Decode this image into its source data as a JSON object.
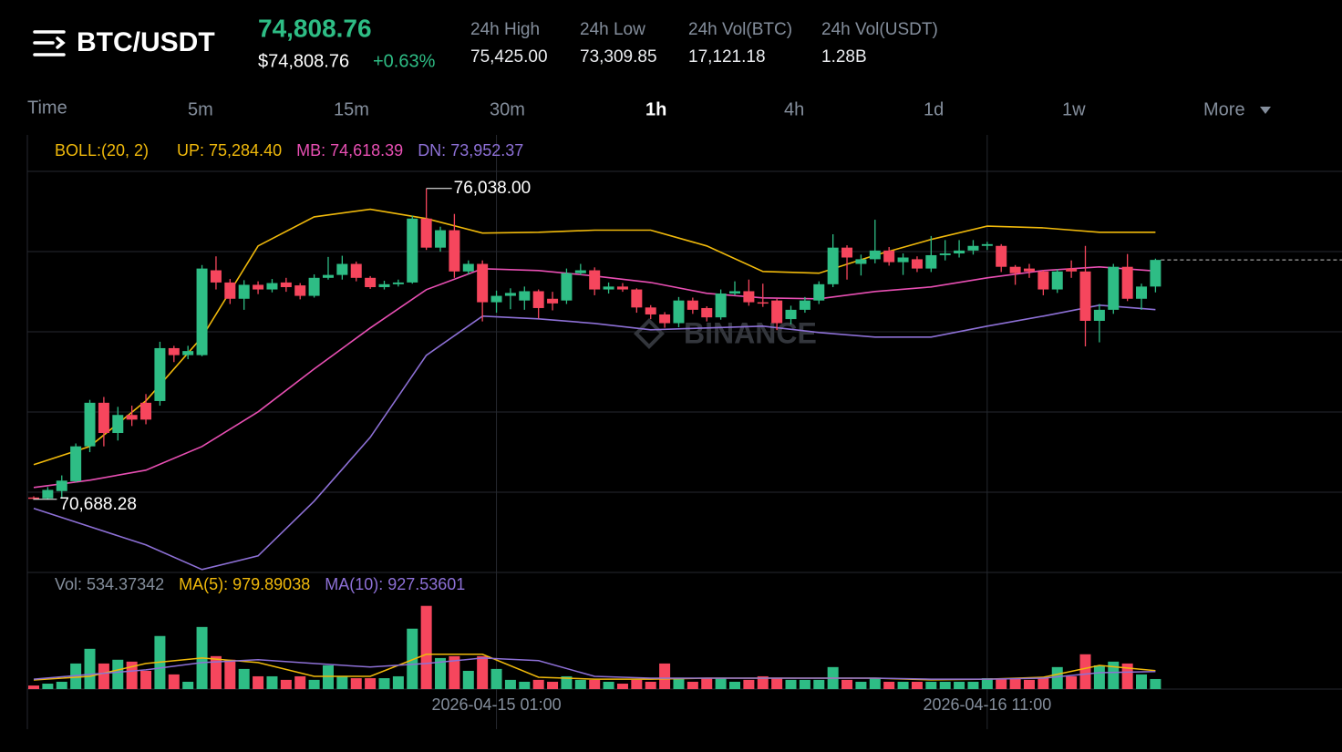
{
  "header": {
    "symbol": "BTC/USDT",
    "price": "74,808.76",
    "price_usd": "$74,808.76",
    "change": "+0.63%",
    "stats": [
      {
        "label": "24h High",
        "value": "75,425.00"
      },
      {
        "label": "24h Low",
        "value": "73,309.85"
      },
      {
        "label": "24h Vol(BTC)",
        "value": "17,121.18"
      },
      {
        "label": "24h Vol(USDT)",
        "value": "1.28B"
      }
    ]
  },
  "tabs": [
    "Time",
    "5m",
    "15m",
    "30m",
    "1h",
    "4h",
    "1d",
    "1w",
    "More"
  ],
  "active_tab": 4,
  "chart_data": [
    {
      "type": "candlestick",
      "up_color": "#2ebd85",
      "down_color": "#f6465d",
      "ylim": [
        69430,
        76960
      ],
      "watermark": "BINANCE",
      "categories": [
        null,
        null,
        null,
        null,
        null,
        null,
        null,
        null,
        null,
        null,
        null,
        null,
        null,
        null,
        null,
        null,
        null,
        null,
        null,
        null,
        null,
        null,
        null,
        null,
        null,
        null,
        null,
        null,
        null,
        null,
        null,
        null,
        null,
        "2026-04-15 01:00",
        null,
        null,
        null,
        null,
        null,
        null,
        null,
        null,
        null,
        null,
        null,
        null,
        null,
        null,
        null,
        null,
        null,
        null,
        null,
        null,
        null,
        null,
        null,
        null,
        null,
        null,
        null,
        null,
        null,
        null,
        null,
        null,
        null,
        null,
        "2026-04-16 11:00",
        null,
        null,
        null,
        null,
        null,
        null,
        null,
        null,
        null,
        null,
        null,
        null
      ],
      "candles": [
        [
          70720,
          70740,
          70700,
          70705
        ],
        [
          70705,
          70900,
          70688.28,
          70850
        ],
        [
          70830,
          71100,
          70700,
          71010
        ],
        [
          71000,
          71650,
          70980,
          71600
        ],
        [
          71600,
          72400,
          71500,
          72350
        ],
        [
          72350,
          72450,
          71600,
          71830
        ],
        [
          71830,
          72280,
          71700,
          72140
        ],
        [
          72140,
          72300,
          71950,
          72060
        ],
        [
          72350,
          72500,
          71980,
          72060
        ],
        [
          72380,
          73400,
          72300,
          73290
        ],
        [
          73290,
          73330,
          73050,
          73170
        ],
        [
          73170,
          73330,
          73100,
          73240
        ],
        [
          73170,
          74720,
          73150,
          74660
        ],
        [
          74630,
          74870,
          74300,
          74420
        ],
        [
          74420,
          74480,
          74050,
          74140
        ],
        [
          74140,
          74460,
          73950,
          74380
        ],
        [
          74380,
          74440,
          74220,
          74300
        ],
        [
          74300,
          74480,
          74250,
          74410
        ],
        [
          74420,
          74500,
          74260,
          74340
        ],
        [
          74370,
          74410,
          74130,
          74190
        ],
        [
          74190,
          74560,
          74160,
          74500
        ],
        [
          74500,
          74860,
          74470,
          74550
        ],
        [
          74550,
          74880,
          74470,
          74740
        ],
        [
          74740,
          74780,
          74440,
          74500
        ],
        [
          74500,
          74530,
          74310,
          74340
        ],
        [
          74340,
          74450,
          74300,
          74390
        ],
        [
          74390,
          74470,
          74350,
          74420
        ],
        [
          74420,
          75570,
          74400,
          75520
        ],
        [
          75520,
          76038,
          74980,
          75020
        ],
        [
          75020,
          75380,
          74950,
          75320
        ],
        [
          75320,
          75600,
          74500,
          74610
        ],
        [
          74610,
          74800,
          74560,
          74740
        ],
        [
          74740,
          74800,
          73750,
          74080
        ],
        [
          74080,
          74280,
          73900,
          74190
        ],
        [
          74190,
          74320,
          73960,
          74240
        ],
        [
          74110,
          74350,
          73950,
          74270
        ],
        [
          74270,
          74300,
          73800,
          73980
        ],
        [
          74140,
          74260,
          73940,
          74060
        ],
        [
          74110,
          74660,
          74050,
          74580
        ],
        [
          74580,
          74740,
          74550,
          74630
        ],
        [
          74630,
          74680,
          74200,
          74300
        ],
        [
          74300,
          74420,
          74230,
          74350
        ],
        [
          74350,
          74410,
          74260,
          74300
        ],
        [
          74300,
          74320,
          73900,
          73990
        ],
        [
          73990,
          74030,
          73790,
          73870
        ],
        [
          73870,
          73910,
          73640,
          73720
        ],
        [
          73720,
          74170,
          73650,
          74110
        ],
        [
          74110,
          74160,
          73880,
          73950
        ],
        [
          73980,
          74010,
          73750,
          73820
        ],
        [
          73820,
          74300,
          73780,
          74230
        ],
        [
          74230,
          74440,
          74200,
          74270
        ],
        [
          74270,
          74470,
          74020,
          74080
        ],
        [
          74080,
          74400,
          74000,
          74060
        ],
        [
          74110,
          74140,
          73600,
          73720
        ],
        [
          73790,
          74020,
          73700,
          73950
        ],
        [
          73950,
          74170,
          73900,
          74110
        ],
        [
          74110,
          74440,
          74050,
          74390
        ],
        [
          74390,
          75250,
          74340,
          75020
        ],
        [
          75020,
          75060,
          74470,
          74850
        ],
        [
          74740,
          74900,
          74540,
          74820
        ],
        [
          74820,
          75500,
          74750,
          74970
        ],
        [
          74970,
          75030,
          74710,
          74770
        ],
        [
          74770,
          74920,
          74550,
          74850
        ],
        [
          74820,
          74870,
          74600,
          74660
        ],
        [
          74660,
          75220,
          74600,
          74890
        ],
        [
          74890,
          75150,
          74800,
          74920
        ],
        [
          74920,
          75150,
          74850,
          74970
        ],
        [
          74970,
          75150,
          74900,
          75050
        ],
        [
          75050,
          75120,
          74980,
          75080
        ],
        [
          75050,
          75080,
          74600,
          74690
        ],
        [
          74690,
          74720,
          74380,
          74580
        ],
        [
          74660,
          74740,
          74500,
          74610
        ],
        [
          74610,
          74630,
          74200,
          74300
        ],
        [
          74300,
          74650,
          74240,
          74610
        ],
        [
          74660,
          74800,
          74500,
          74610
        ],
        [
          74610,
          75050,
          73320,
          73760
        ],
        [
          73760,
          74050,
          73390,
          73950
        ],
        [
          73950,
          74740,
          73880,
          74690
        ],
        [
          74690,
          74910,
          74100,
          74140
        ],
        [
          74140,
          74400,
          73950,
          74350
        ],
        [
          74350,
          74830,
          74250,
          74808.76
        ]
      ],
      "high_label": {
        "value": 76038,
        "label": "76,038.00"
      },
      "low_label": {
        "value": 70688.28,
        "label": "70,688.28"
      },
      "indicator_label": "BOLL:(20, 2)",
      "overlay_x": [
        0,
        4,
        8,
        12,
        16,
        20,
        24,
        28,
        32,
        36,
        40,
        44,
        48,
        52,
        56,
        60,
        64,
        68,
        72,
        76,
        80
      ],
      "overlays": [
        {
          "legend": "UP: 75,284.40",
          "color": "#f0b90b",
          "values": [
            71284,
            71598,
            72382,
            73480,
            75050,
            75550,
            75680,
            75520,
            75270,
            75285,
            75320,
            75320,
            75050,
            74610,
            74580,
            74890,
            75160,
            75390,
            75360,
            75285,
            75284.4
          ]
        },
        {
          "legend": "MB: 74,618.39",
          "color": "#e84fb3",
          "values": [
            70892,
            71017,
            71190,
            71598,
            72194,
            72932,
            73638,
            74296,
            74657,
            74626,
            74532,
            74420,
            74234,
            74155,
            74140,
            74265,
            74343,
            74500,
            74626,
            74689,
            74618.39
          ]
        },
        {
          "legend": "DN: 73,952.37",
          "color": "#8d70d6",
          "values": [
            70531,
            70217,
            69903,
            69480,
            69715,
            70657,
            71755,
            73167,
            73841,
            73794,
            73716,
            73606,
            73638,
            73669,
            73559,
            73480,
            73480,
            73669,
            73841,
            74030,
            73952.37
          ]
        }
      ]
    },
    {
      "type": "bar",
      "ylim": [
        0,
        6100
      ],
      "legend": "Vol: 534.37342",
      "values": [
        190,
        290,
        390,
        1360,
        2140,
        1360,
        1560,
        1460,
        970,
        2820,
        780,
        390,
        3300,
        1750,
        1560,
        1070,
        680,
        680,
        490,
        680,
        490,
        1260,
        680,
        580,
        580,
        580,
        680,
        3210,
        4420,
        1650,
        1750,
        970,
        1750,
        1070,
        490,
        390,
        490,
        390,
        680,
        490,
        490,
        390,
        290,
        490,
        390,
        1360,
        580,
        390,
        580,
        580,
        390,
        490,
        680,
        580,
        490,
        490,
        490,
        1170,
        490,
        390,
        580,
        390,
        390,
        390,
        390,
        390,
        390,
        390,
        580,
        580,
        580,
        490,
        580,
        1170,
        680,
        1850,
        1260,
        1460,
        1360,
        780,
        534.37342
      ],
      "overlay_x": [
        0,
        4,
        8,
        12,
        16,
        20,
        24,
        28,
        32,
        36,
        40,
        44,
        48,
        52,
        56,
        60,
        64,
        68,
        72,
        76,
        80
      ],
      "overlays": [
        {
          "legend": "MA(5): 979.89038",
          "color": "#f0b90b",
          "values": [
            486,
            680,
            1360,
            1650,
            1410,
            680,
            680,
            1850,
            1850,
            630,
            530,
            530,
            580,
            580,
            580,
            580,
            490,
            530,
            630,
            1260,
            979.89038
          ]
        },
        {
          "legend": "MA(10): 927.53601",
          "color": "#8d70d6",
          "values": [
            530,
            780,
            1020,
            1410,
            1560,
            1360,
            1170,
            1360,
            1650,
            1510,
            680,
            580,
            580,
            580,
            580,
            580,
            530,
            530,
            580,
            870,
            927.53601
          ]
        }
      ]
    }
  ]
}
